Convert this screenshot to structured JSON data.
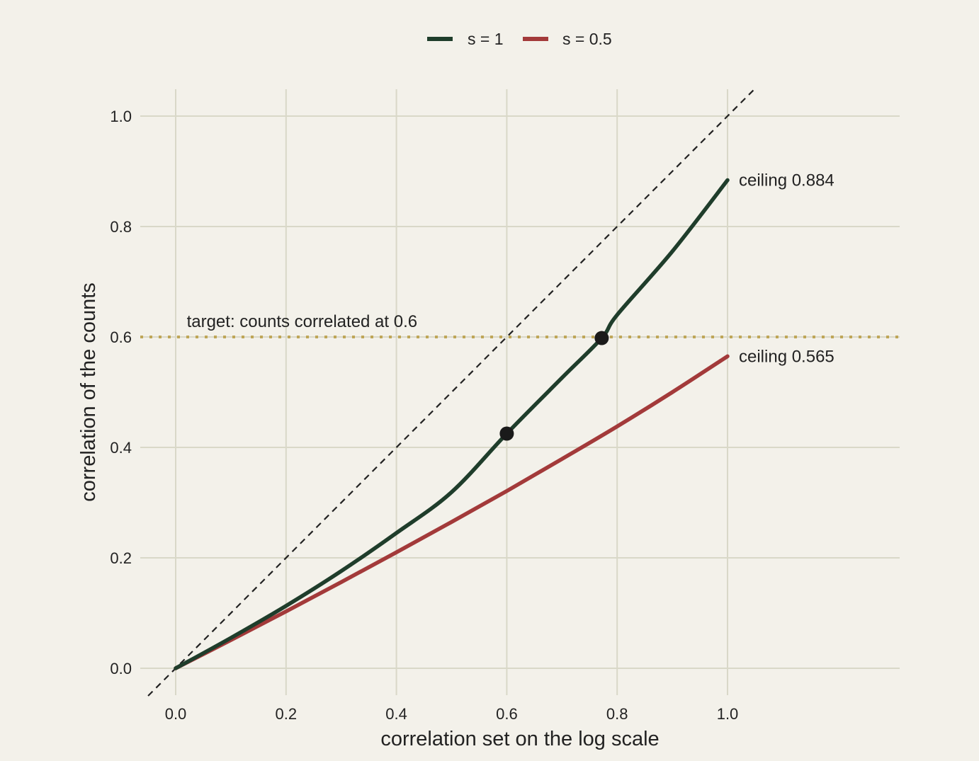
{
  "chart_data": {
    "type": "line",
    "title": "",
    "xlabel": "correlation set on the log scale",
    "ylabel": "correlation of the counts",
    "xlim": [
      -0.05,
      1.31
    ],
    "ylim": [
      -0.05,
      1.05
    ],
    "x_ticks": [
      0.0,
      0.2,
      0.4,
      0.6,
      0.8,
      1.0
    ],
    "y_ticks": [
      0.0,
      0.2,
      0.4,
      0.6,
      0.8,
      1.0
    ],
    "x_tick_labels": [
      "0.0",
      "0.2",
      "0.4",
      "0.6",
      "0.8",
      "1.0"
    ],
    "y_tick_labels": [
      "0.0",
      "0.2",
      "0.4",
      "0.6",
      "0.8",
      "1.0"
    ],
    "grid": true,
    "legend_position": "top-center",
    "series": [
      {
        "name": "s = 1",
        "color": "#1f3d2b",
        "x": [
          0.0,
          0.1,
          0.2,
          0.3,
          0.4,
          0.5,
          0.6,
          0.7,
          0.772,
          0.8,
          0.9,
          1.0
        ],
        "values": [
          0.0,
          0.055,
          0.113,
          0.176,
          0.245,
          0.319,
          0.425,
          0.526,
          0.598,
          0.64,
          0.755,
          0.884
        ]
      },
      {
        "name": "s = 0.5",
        "color": "#a33a3a",
        "x": [
          0.0,
          0.1,
          0.2,
          0.3,
          0.4,
          0.5,
          0.6,
          0.7,
          0.8,
          0.9,
          1.0
        ],
        "values": [
          0.0,
          0.051,
          0.103,
          0.156,
          0.21,
          0.265,
          0.321,
          0.379,
          0.438,
          0.5,
          0.565
        ]
      }
    ],
    "reference_lines": [
      {
        "kind": "identity",
        "label": "",
        "style": "dashed",
        "color": "#222222"
      },
      {
        "kind": "horizontal",
        "y": 0.6,
        "label": "target: counts correlated at 0.6",
        "style": "dotted",
        "color": "#bfa657"
      }
    ],
    "highlight_points": [
      {
        "x": 0.6,
        "y": 0.425,
        "color": "#1a1a1a"
      },
      {
        "x": 0.772,
        "y": 0.598,
        "color": "#1a1a1a"
      }
    ],
    "annotations": [
      {
        "text": "ceiling 0.884",
        "x": 1.0,
        "y": 0.884
      },
      {
        "text": "ceiling 0.565",
        "x": 1.0,
        "y": 0.565
      }
    ]
  }
}
